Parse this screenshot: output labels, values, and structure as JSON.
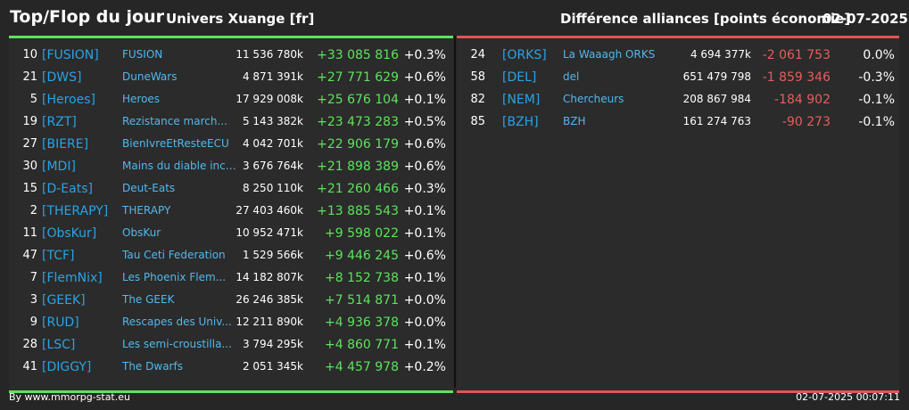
{
  "header": {
    "title": "Top/Flop du jour",
    "universe": "Univers Xuange [fr]",
    "right_title": "Différence alliances [points économie]",
    "date": "02-07-2025"
  },
  "colors": {
    "positive": "#5de35d",
    "negative": "#e85d5d",
    "tag": "#29a3e6",
    "name": "#52b8ec"
  },
  "top": [
    {
      "rank": "10",
      "tag": "[FUSION]",
      "name": "FUSION",
      "points": "11 536 780k",
      "diff": "+33 085 816",
      "pct": "+0.3%"
    },
    {
      "rank": "21",
      "tag": "[DWS]",
      "name": "DuneWars",
      "points": "4 871 391k",
      "diff": "+27 771 629",
      "pct": "+0.6%"
    },
    {
      "rank": "5",
      "tag": "[Heroes]",
      "name": "Heroes",
      "points": "17 929 008k",
      "diff": "+25 676 104",
      "pct": "+0.1%"
    },
    {
      "rank": "19",
      "tag": "[RZT]",
      "name": "Rezistance march...",
      "points": "5 143 382k",
      "diff": "+23 473 283",
      "pct": "+0.5%"
    },
    {
      "rank": "27",
      "tag": "[BIERE]",
      "name": "BienIvreEtResteECU",
      "points": "4 042 701k",
      "diff": "+22 906 179",
      "pct": "+0.6%"
    },
    {
      "rank": "30",
      "tag": "[MDI]",
      "name": "Mains du diable inco...",
      "points": "3 676 764k",
      "diff": "+21 898 389",
      "pct": "+0.6%"
    },
    {
      "rank": "15",
      "tag": "[D-Eats]",
      "name": "Deut-Eats",
      "points": "8 250 110k",
      "diff": "+21 260 466",
      "pct": "+0.3%"
    },
    {
      "rank": "2",
      "tag": "[THERAPY]",
      "name": "THERAPY",
      "points": "27 403 460k",
      "diff": "+13 885 543",
      "pct": "+0.1%"
    },
    {
      "rank": "11",
      "tag": "[ObsKur]",
      "name": "ObsKur",
      "points": "10 952 471k",
      "diff": "+9 598 022",
      "pct": "+0.1%"
    },
    {
      "rank": "47",
      "tag": "[TCF]",
      "name": "Tau Ceti Federation",
      "points": "1 529 566k",
      "diff": "+9 446 245",
      "pct": "+0.6%"
    },
    {
      "rank": "7",
      "tag": "[FlemNix]",
      "name": "Les Phoenix Flem...",
      "points": "14 182 807k",
      "diff": "+8 152 738",
      "pct": "+0.1%"
    },
    {
      "rank": "3",
      "tag": "[GEEK]",
      "name": "The GEEK",
      "points": "26 246 385k",
      "diff": "+7 514 871",
      "pct": "+0.0%"
    },
    {
      "rank": "9",
      "tag": "[RUD]",
      "name": "Rescapes des Univ...",
      "points": "12 211 890k",
      "diff": "+4 936 378",
      "pct": "+0.0%"
    },
    {
      "rank": "28",
      "tag": "[LSC]",
      "name": "Les semi-croustilla...",
      "points": "3 794 295k",
      "diff": "+4 860 771",
      "pct": "+0.1%"
    },
    {
      "rank": "41",
      "tag": "[DIGGY]",
      "name": "The Dwarfs",
      "points": "2 051 345k",
      "diff": "+4 457 978",
      "pct": "+0.2%"
    }
  ],
  "flop": [
    {
      "rank": "24",
      "tag": "[ORKS]",
      "name": "La Waaagh ORKS",
      "points": "4 694 377k",
      "diff": "-2 061 753",
      "pct": "0.0%"
    },
    {
      "rank": "58",
      "tag": "[DEL]",
      "name": "del",
      "points": "651 479 798",
      "diff": "-1 859 346",
      "pct": "-0.3%"
    },
    {
      "rank": "82",
      "tag": "[NEM]",
      "name": "Chercheurs",
      "points": "208 867 984",
      "diff": "-184 902",
      "pct": "-0.1%"
    },
    {
      "rank": "85",
      "tag": "[BZH]",
      "name": "BZH",
      "points": "161 274 763",
      "diff": "-90 273",
      "pct": "-0.1%"
    }
  ],
  "footer": {
    "source": "By www.mmorpg-stat.eu",
    "timestamp": "02-07-2025 00:07:11"
  }
}
